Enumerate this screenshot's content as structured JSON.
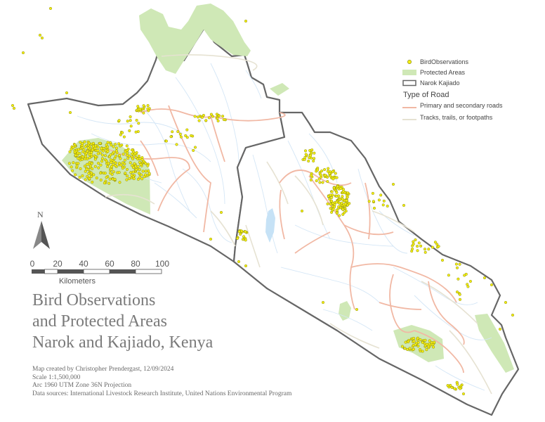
{
  "legend": {
    "items": [
      {
        "key": "birds",
        "label": "BirdObservations"
      },
      {
        "key": "protected",
        "label": "Protected Areas"
      },
      {
        "key": "boundary",
        "label": "Narok Kajiado"
      }
    ],
    "road_heading": "Type of Road",
    "roads": [
      {
        "key": "primary",
        "label": "Primary and secondary roads"
      },
      {
        "key": "tracks",
        "label": "Tracks, trails, or footpaths"
      }
    ]
  },
  "north_arrow": {
    "letter": "N"
  },
  "scale_bar": {
    "ticks": [
      "0",
      "20",
      "40",
      "60",
      "80",
      "100"
    ],
    "unit": "Kilometers"
  },
  "title_lines": [
    "Bird Observations",
    "and Protected Areas",
    "Narok and Kajiado, Kenya"
  ],
  "credits": [
    "Map created by Christopher Prendergast, 12/09/2024",
    "Scale 1:1,500,000",
    "Arc 1960 UTM Zone 36N Projection",
    "Data sources: International Livestock Research Institute, United Nations Environmental Program"
  ],
  "colors": {
    "bird_fill": "#f5f011",
    "bird_stroke": "#8a8a10",
    "protected_fill": "#cfe8b6",
    "boundary": "#666666",
    "primary_road": "#f1b8a4",
    "track": "#e6e2d2",
    "river": "#d4e6f6",
    "lake": "#c6e2f6"
  }
}
